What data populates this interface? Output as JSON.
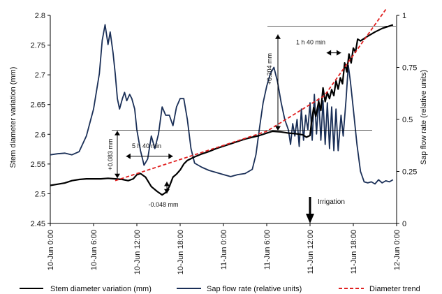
{
  "chart_data": {
    "type": "line",
    "colors": {
      "diameter": "#000000",
      "sapflow": "#1a2f57",
      "trend": "#e02020",
      "annot": "#000000"
    },
    "y_left": {
      "label": "Stem diameter variation (mm)",
      "min": 2.45,
      "max": 2.8,
      "ticks": [
        "2.45",
        "2.5",
        "2.55",
        "2.6",
        "2.65",
        "2.7",
        "2.75",
        "2.8"
      ]
    },
    "y_right": {
      "label": "Sap flow rate (relative units)",
      "min": 0,
      "max": 1,
      "ticks": [
        "0",
        "0.25",
        "0.5",
        "0.75",
        "1"
      ]
    },
    "x": {
      "min": 0,
      "max": 48,
      "ticks": [
        0,
        6,
        12,
        18,
        24,
        30,
        36,
        42,
        48
      ],
      "tick_labels": [
        "10-Jun 0:00",
        "10-Jun 6:00",
        "10-Jun 12:00",
        "10-Jun 18:00",
        "11-Jun 0:00",
        "11-Jun 6:00",
        "11-Jun 12:00",
        "11-Jun 18:00",
        "12-Jun 0:00"
      ]
    },
    "legend": [
      "Stem diameter variation (mm)",
      "Sap flow rate (relative units)",
      "Diameter trend"
    ],
    "annotations": {
      "gain1": "+0.083 mm",
      "time1": "5 h 40 min",
      "drop": "-0.048 mm",
      "gain2": "+0.204 mm",
      "time2": "1 h 40 min",
      "irrigation": "Irrigation"
    },
    "series": [
      {
        "name": "Stem diameter variation (mm)",
        "axis": "left",
        "points": [
          [
            0,
            2.514
          ],
          [
            1,
            2.516
          ],
          [
            2,
            2.518
          ],
          [
            3,
            2.522
          ],
          [
            4,
            2.524
          ],
          [
            5,
            2.525
          ],
          [
            6,
            2.525
          ],
          [
            7,
            2.525
          ],
          [
            8,
            2.526
          ],
          [
            9,
            2.525
          ],
          [
            10,
            2.524
          ],
          [
            10.8,
            2.522
          ],
          [
            11.5,
            2.525
          ],
          [
            12,
            2.532
          ],
          [
            12.5,
            2.534
          ],
          [
            13.2,
            2.528
          ],
          [
            14,
            2.512
          ],
          [
            14.8,
            2.504
          ],
          [
            15.5,
            2.498
          ],
          [
            16,
            2.502
          ],
          [
            16.5,
            2.512
          ],
          [
            17,
            2.528
          ],
          [
            17.5,
            2.533
          ],
          [
            18,
            2.54
          ],
          [
            18.5,
            2.55
          ],
          [
            19,
            2.556
          ],
          [
            20,
            2.562
          ],
          [
            21,
            2.567
          ],
          [
            22,
            2.571
          ],
          [
            23,
            2.576
          ],
          [
            24,
            2.58
          ],
          [
            25,
            2.584
          ],
          [
            26,
            2.588
          ],
          [
            27,
            2.592
          ],
          [
            28,
            2.595
          ],
          [
            29,
            2.598
          ],
          [
            30,
            2.602
          ],
          [
            30.8,
            2.605
          ],
          [
            32,
            2.604
          ],
          [
            33,
            2.602
          ],
          [
            34,
            2.601
          ],
          [
            35,
            2.599
          ],
          [
            35.5,
            2.595
          ],
          [
            36,
            2.598
          ],
          [
            36.2,
            2.62
          ],
          [
            36.5,
            2.645
          ],
          [
            36.8,
            2.63
          ],
          [
            37.2,
            2.655
          ],
          [
            37.5,
            2.64
          ],
          [
            37.8,
            2.678
          ],
          [
            38.1,
            2.655
          ],
          [
            38.4,
            2.67
          ],
          [
            38.7,
            2.66
          ],
          [
            39,
            2.675
          ],
          [
            39.3,
            2.665
          ],
          [
            39.6,
            2.69
          ],
          [
            39.9,
            2.676
          ],
          [
            40.2,
            2.695
          ],
          [
            40.5,
            2.685
          ],
          [
            40.8,
            2.72
          ],
          [
            41.1,
            2.705
          ],
          [
            41.4,
            2.735
          ],
          [
            41.7,
            2.72
          ],
          [
            42,
            2.745
          ],
          [
            42.3,
            2.738
          ],
          [
            42.6,
            2.76
          ],
          [
            43,
            2.757
          ],
          [
            44,
            2.765
          ],
          [
            45,
            2.772
          ],
          [
            46,
            2.778
          ],
          [
            47,
            2.782
          ],
          [
            47.5,
            2.784
          ]
        ]
      },
      {
        "name": "Sap flow rate (relative units)",
        "axis": "right",
        "points": [
          [
            0,
            0.33
          ],
          [
            1,
            0.335
          ],
          [
            2,
            0.338
          ],
          [
            3,
            0.33
          ],
          [
            4,
            0.345
          ],
          [
            5,
            0.42
          ],
          [
            6,
            0.55
          ],
          [
            6.8,
            0.72
          ],
          [
            7.2,
            0.88
          ],
          [
            7.6,
            0.955
          ],
          [
            8,
            0.86
          ],
          [
            8.3,
            0.92
          ],
          [
            8.7,
            0.82
          ],
          [
            9,
            0.72
          ],
          [
            9.3,
            0.6
          ],
          [
            9.6,
            0.55
          ],
          [
            10,
            0.6
          ],
          [
            10.3,
            0.63
          ],
          [
            10.6,
            0.59
          ],
          [
            11,
            0.62
          ],
          [
            11.3,
            0.6
          ],
          [
            11.7,
            0.55
          ],
          [
            12,
            0.45
          ],
          [
            12.5,
            0.35
          ],
          [
            13,
            0.28
          ],
          [
            13.5,
            0.31
          ],
          [
            14,
            0.42
          ],
          [
            14.5,
            0.36
          ],
          [
            15,
            0.43
          ],
          [
            15.5,
            0.56
          ],
          [
            16,
            0.52
          ],
          [
            16.5,
            0.52
          ],
          [
            17,
            0.47
          ],
          [
            17.5,
            0.56
          ],
          [
            18,
            0.6
          ],
          [
            18.5,
            0.6
          ],
          [
            19,
            0.5
          ],
          [
            19.5,
            0.36
          ],
          [
            20,
            0.29
          ],
          [
            21,
            0.27
          ],
          [
            22,
            0.255
          ],
          [
            23,
            0.245
          ],
          [
            24,
            0.235
          ],
          [
            25,
            0.225
          ],
          [
            26,
            0.235
          ],
          [
            27,
            0.24
          ],
          [
            28,
            0.26
          ],
          [
            28.5,
            0.33
          ],
          [
            29,
            0.46
          ],
          [
            29.5,
            0.58
          ],
          [
            30,
            0.66
          ],
          [
            30.5,
            0.72
          ],
          [
            31,
            0.75
          ],
          [
            31.5,
            0.68
          ],
          [
            32,
            0.58
          ],
          [
            32.5,
            0.5
          ],
          [
            33,
            0.45
          ],
          [
            33.3,
            0.38
          ],
          [
            33.6,
            0.48
          ],
          [
            33.9,
            0.42
          ],
          [
            34.2,
            0.5
          ],
          [
            34.5,
            0.37
          ],
          [
            34.8,
            0.55
          ],
          [
            35.1,
            0.4
          ],
          [
            35.4,
            0.52
          ],
          [
            35.7,
            0.45
          ],
          [
            36,
            0.58
          ],
          [
            36.3,
            0.4
          ],
          [
            36.6,
            0.62
          ],
          [
            36.9,
            0.43
          ],
          [
            37.2,
            0.6
          ],
          [
            37.5,
            0.4
          ],
          [
            37.8,
            0.59
          ],
          [
            38.1,
            0.38
          ],
          [
            38.4,
            0.58
          ],
          [
            38.7,
            0.36
          ],
          [
            39,
            0.56
          ],
          [
            39.3,
            0.35
          ],
          [
            39.6,
            0.55
          ],
          [
            39.9,
            0.35
          ],
          [
            40.3,
            0.52
          ],
          [
            40.6,
            0.42
          ],
          [
            41,
            0.6
          ],
          [
            41.3,
            0.76
          ],
          [
            41.6,
            0.68
          ],
          [
            42,
            0.55
          ],
          [
            42.5,
            0.38
          ],
          [
            43,
            0.25
          ],
          [
            43.5,
            0.2
          ],
          [
            44,
            0.195
          ],
          [
            44.5,
            0.2
          ],
          [
            45,
            0.19
          ],
          [
            45.5,
            0.21
          ],
          [
            46,
            0.195
          ],
          [
            46.5,
            0.205
          ],
          [
            47,
            0.2
          ],
          [
            47.5,
            0.21
          ]
        ]
      },
      {
        "name": "Diameter trend",
        "axis": "left",
        "dashed": true,
        "points": [
          [
            9,
            2.522
          ],
          [
            30,
            2.605
          ],
          [
            38,
            2.665
          ],
          [
            46.5,
            2.81
          ]
        ]
      }
    ]
  }
}
